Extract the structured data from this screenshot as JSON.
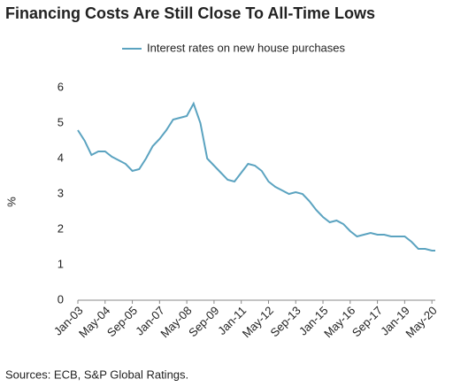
{
  "chart_data": {
    "type": "line",
    "title": "Financing Costs Are Still Close To All-Time Lows",
    "y_label": "%",
    "source": "Sources: ECB, S&P Global Ratings.",
    "x": [
      "2003-01",
      "2003-05",
      "2003-09",
      "2004-01",
      "2004-05",
      "2004-09",
      "2005-01",
      "2005-05",
      "2005-09",
      "2006-01",
      "2006-05",
      "2006-09",
      "2007-01",
      "2007-05",
      "2007-09",
      "2008-01",
      "2008-05",
      "2008-09",
      "2009-01",
      "2009-05",
      "2009-09",
      "2010-01",
      "2010-05",
      "2010-09",
      "2011-01",
      "2011-05",
      "2011-09",
      "2012-01",
      "2012-05",
      "2012-09",
      "2013-01",
      "2013-05",
      "2013-09",
      "2014-01",
      "2014-05",
      "2014-09",
      "2015-01",
      "2015-05",
      "2015-09",
      "2016-01",
      "2016-05",
      "2016-09",
      "2017-01",
      "2017-05",
      "2017-09",
      "2018-01",
      "2018-05",
      "2018-09",
      "2019-01",
      "2019-05",
      "2019-09",
      "2020-01",
      "2020-05",
      "2020-07"
    ],
    "series": [
      {
        "name": "Interest rates on new house purchases",
        "color": "#5ba3c0",
        "values": [
          4.8,
          4.5,
          4.1,
          4.2,
          4.2,
          4.05,
          3.95,
          3.85,
          3.65,
          3.7,
          4.0,
          4.35,
          4.55,
          4.8,
          5.1,
          5.15,
          5.2,
          5.55,
          5.0,
          4.0,
          3.8,
          3.6,
          3.4,
          3.35,
          3.6,
          3.85,
          3.8,
          3.65,
          3.35,
          3.2,
          3.1,
          3.0,
          3.05,
          3.0,
          2.8,
          2.55,
          2.35,
          2.2,
          2.25,
          2.15,
          1.95,
          1.8,
          1.85,
          1.9,
          1.85,
          1.85,
          1.8,
          1.8,
          1.8,
          1.65,
          1.45,
          1.45,
          1.4,
          1.4
        ]
      }
    ],
    "xlim": [
      "2003-01",
      "2020-07"
    ],
    "xticks": [
      {
        "value": "2003-01",
        "label": "Jan-03"
      },
      {
        "value": "2004-05",
        "label": "May-04"
      },
      {
        "value": "2005-09",
        "label": "Sep-05"
      },
      {
        "value": "2007-01",
        "label": "Jan-07"
      },
      {
        "value": "2008-05",
        "label": "May-08"
      },
      {
        "value": "2009-09",
        "label": "Sep-09"
      },
      {
        "value": "2011-01",
        "label": "Jan-11"
      },
      {
        "value": "2012-05",
        "label": "May-12"
      },
      {
        "value": "2013-09",
        "label": "Sep-13"
      },
      {
        "value": "2015-01",
        "label": "Jan-15"
      },
      {
        "value": "2016-05",
        "label": "May-16"
      },
      {
        "value": "2017-09",
        "label": "Sep-17"
      },
      {
        "value": "2019-01",
        "label": "Jan-19"
      },
      {
        "value": "2020-05",
        "label": "May-20"
      }
    ],
    "ylim": [
      0,
      6
    ],
    "yticks": [
      0,
      1,
      2,
      3,
      4,
      5,
      6
    ],
    "grid": false,
    "legend": "top"
  }
}
